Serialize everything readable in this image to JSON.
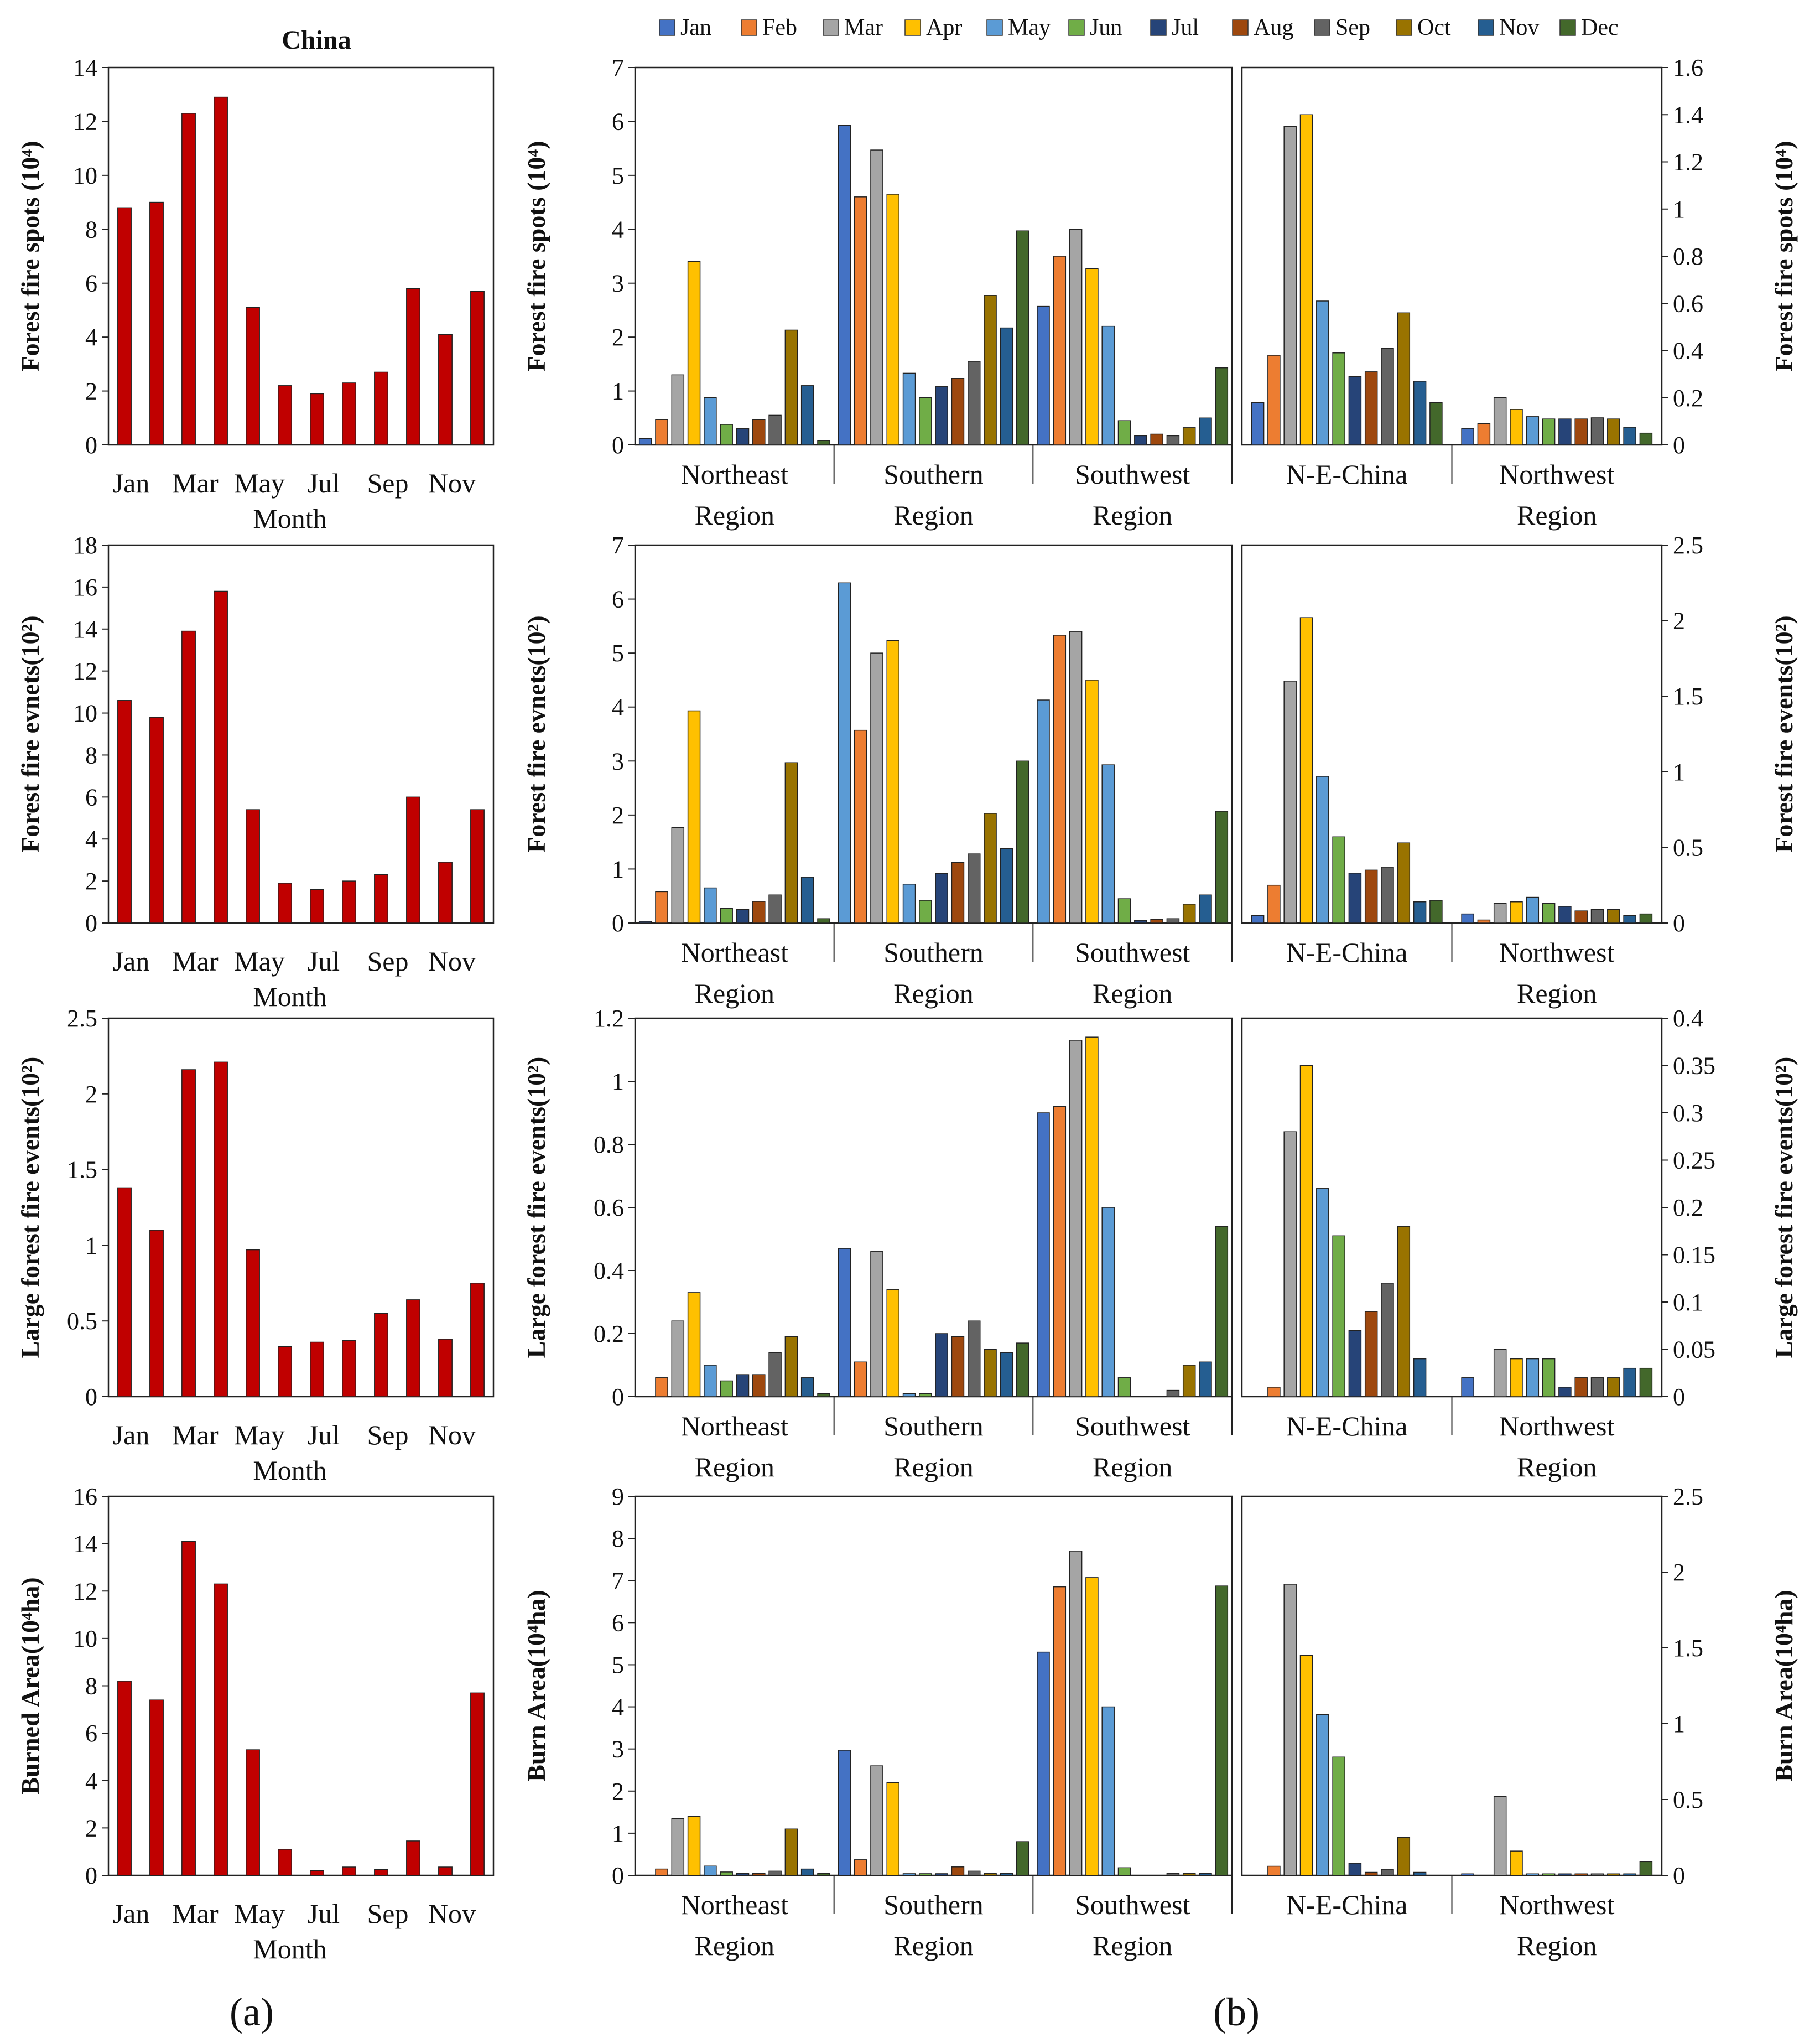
{
  "figure": {
    "panel_labels": [
      "(a)",
      "(b)"
    ],
    "china_title": "China",
    "month_tick_labels": [
      "Jan",
      "Mar",
      "May",
      "Jul",
      "Sep",
      "Nov"
    ],
    "month_axis_title": "Month",
    "region_groups_left": [
      [
        "Northeast",
        "Region"
      ],
      [
        "Southern",
        "Region"
      ],
      [
        "Southwest",
        "Region"
      ]
    ],
    "region_groups_right": [
      [
        "N-E-China"
      ],
      [
        "Northwest",
        "Region"
      ]
    ]
  },
  "colors": {
    "china_bar": "#C00000",
    "months": [
      "#4472C4",
      "#ED7D31",
      "#A5A5A5",
      "#FFC000",
      "#5B9BD5",
      "#70AD47",
      "#264478",
      "#9E480E",
      "#636363",
      "#997300",
      "#255E91",
      "#43682B"
    ]
  },
  "legend": {
    "items": [
      "Jan",
      "Feb",
      "Mar",
      "Apr",
      "May",
      "Jun",
      "Jul",
      "Aug",
      "Sep",
      "Oct",
      "Nov",
      "Dec"
    ]
  },
  "chart_data": [
    {
      "type": "bar",
      "id": "china-spots",
      "title": "China",
      "xlabel": "Month",
      "ylabel": "Forest fire spots (10⁴)",
      "ylim": [
        0,
        14
      ],
      "yticks": [
        0,
        2,
        4,
        6,
        8,
        10,
        12,
        14
      ],
      "categories": [
        "Jan",
        "Feb",
        "Mar",
        "Apr",
        "May",
        "Jun",
        "Jul",
        "Aug",
        "Sep",
        "Oct",
        "Nov",
        "Dec"
      ],
      "values": [
        8.8,
        9.0,
        12.3,
        12.9,
        5.1,
        2.2,
        1.9,
        2.3,
        2.7,
        5.8,
        4.1,
        5.7
      ]
    },
    {
      "type": "bar",
      "id": "china-events",
      "title": "",
      "xlabel": "Month",
      "ylabel": "Forest fire evnets(10²)",
      "ylim": [
        0,
        18
      ],
      "yticks": [
        0,
        2,
        4,
        6,
        8,
        10,
        12,
        14,
        16,
        18
      ],
      "categories": [
        "Jan",
        "Feb",
        "Mar",
        "Apr",
        "May",
        "Jun",
        "Jul",
        "Aug",
        "Sep",
        "Oct",
        "Nov",
        "Dec"
      ],
      "values": [
        10.6,
        9.8,
        13.9,
        15.8,
        5.4,
        1.9,
        1.6,
        2.0,
        2.3,
        6.0,
        2.9,
        5.4
      ]
    },
    {
      "type": "bar",
      "id": "china-large",
      "title": "",
      "xlabel": "Month",
      "ylabel": "Large forest  fire events(10²)",
      "ylim": [
        0,
        2.5
      ],
      "yticks": [
        0,
        0.5,
        1,
        1.5,
        2,
        2.5
      ],
      "categories": [
        "Jan",
        "Feb",
        "Mar",
        "Apr",
        "May",
        "Jun",
        "Jul",
        "Aug",
        "Sep",
        "Oct",
        "Nov",
        "Dec"
      ],
      "values": [
        1.38,
        1.1,
        2.16,
        2.21,
        0.97,
        0.33,
        0.36,
        0.37,
        0.55,
        0.64,
        0.38,
        0.75
      ]
    },
    {
      "type": "bar",
      "id": "china-burned",
      "title": "",
      "xlabel": "Month",
      "ylabel": "Burned Area(10⁴ha)",
      "ylim": [
        0,
        16
      ],
      "yticks": [
        0,
        2,
        4,
        6,
        8,
        10,
        12,
        14,
        16
      ],
      "categories": [
        "Jan",
        "Feb",
        "Mar",
        "Apr",
        "May",
        "Jun",
        "Jul",
        "Aug",
        "Sep",
        "Oct",
        "Nov",
        "Dec"
      ],
      "values": [
        8.2,
        7.4,
        14.1,
        12.3,
        5.3,
        1.1,
        0.2,
        0.35,
        0.25,
        1.45,
        0.35,
        7.7
      ]
    },
    {
      "type": "bar",
      "id": "regions-spots",
      "ylabel_left": "Forest fire spots (10⁴)",
      "ylabel_right": "Forest fire spots (10⁴)",
      "ylim_left": [
        0,
        7
      ],
      "yticks_left": [
        0,
        1,
        2,
        3,
        4,
        5,
        6,
        7
      ],
      "ylim_right": [
        0,
        1.6
      ],
      "yticks_right": [
        0,
        0.2,
        0.4,
        0.6,
        0.8,
        1,
        1.2,
        1.4,
        1.6
      ],
      "groups_left": [
        {
          "name": "Northeast Region",
          "values": [
            0.12,
            0.47,
            1.3,
            3.4,
            0.88,
            0.38,
            0.3,
            0.47,
            0.55,
            2.13,
            1.1,
            0.08
          ]
        },
        {
          "name": "Southern Region",
          "values": [
            5.93,
            4.6,
            5.47,
            4.65,
            1.33,
            0.88,
            1.08,
            1.23,
            1.55,
            2.77,
            2.17,
            3.97
          ]
        },
        {
          "name": "Southwest Region",
          "values": [
            2.57,
            3.5,
            4.0,
            3.27,
            2.2,
            0.45,
            0.17,
            0.2,
            0.17,
            0.32,
            0.5,
            1.43
          ]
        }
      ],
      "groups_right": [
        {
          "name": "N-E-China",
          "values": [
            0.18,
            0.38,
            1.35,
            1.4,
            0.61,
            0.39,
            0.29,
            0.31,
            0.41,
            0.56,
            0.27,
            0.18
          ]
        },
        {
          "name": "Northwest Region",
          "values": [
            0.07,
            0.09,
            0.2,
            0.15,
            0.12,
            0.11,
            0.11,
            0.11,
            0.115,
            0.11,
            0.075,
            0.05
          ]
        }
      ]
    },
    {
      "type": "bar",
      "id": "regions-events",
      "ylabel_left": "Forest fire evnets(10²)",
      "ylabel_right": "Forest  fire events(10²)",
      "ylim_left": [
        0,
        7
      ],
      "yticks_left": [
        0,
        1,
        2,
        3,
        4,
        5,
        6,
        7
      ],
      "ylim_right": [
        0,
        2.5
      ],
      "yticks_right": [
        0,
        0.5,
        1,
        1.5,
        2,
        2.5
      ],
      "groups_left": [
        {
          "name": "Northeast Region",
          "values": [
            0.03,
            0.58,
            1.77,
            3.93,
            0.65,
            0.27,
            0.25,
            0.4,
            0.52,
            2.97,
            0.85,
            0.08
          ]
        },
        {
          "name": "Southern Region",
          "values": [
            0,
            3.57,
            5.0,
            5.23,
            0.72,
            0.42,
            0.92,
            1.12,
            1.28,
            2.03,
            1.38,
            3.0
          ]
        },
        {
          "name": "Southwest Region",
          "values": [
            0,
            5.33,
            5.4,
            4.5,
            2.93,
            0.45,
            0.05,
            0.07,
            0.08,
            0.35,
            0.52,
            2.07
          ]
        }
      ],
      "groups_left_first_bar_override": [
        {
          "group": 1,
          "value": 6.3,
          "color_index": 4
        },
        {
          "group": 2,
          "value": 4.13,
          "color_index": 4
        }
      ],
      "groups_right": [
        {
          "name": "N-E-China",
          "values": [
            0.05,
            0.25,
            1.6,
            2.02,
            0.97,
            0.57,
            0.33,
            0.35,
            0.37,
            0.53,
            0.14,
            0.15
          ]
        },
        {
          "name": "Northwest Region",
          "values": [
            0.06,
            0.02,
            0.13,
            0.14,
            0.17,
            0.13,
            0.11,
            0.08,
            0.09,
            0.09,
            0.05,
            0.06
          ]
        }
      ]
    },
    {
      "type": "bar",
      "id": "regions-large",
      "ylabel_left": "Large forest  fire events(10²)",
      "ylabel_right": "Large forest  fire events(10²)",
      "ylim_left": [
        0,
        1.2
      ],
      "yticks_left": [
        0,
        0.2,
        0.4,
        0.6,
        0.8,
        1,
        1.2
      ],
      "ylim_right": [
        0,
        0.4
      ],
      "yticks_right": [
        0,
        0.05,
        0.1,
        0.15,
        0.2,
        0.25,
        0.3,
        0.35,
        0.4
      ],
      "groups_left": [
        {
          "name": "Northeast Region",
          "values": [
            0,
            0.06,
            0.24,
            0.33,
            0.1,
            0.05,
            0.07,
            0.07,
            0.14,
            0.19,
            0.06,
            0.01
          ]
        },
        {
          "name": "Southern Region",
          "values": [
            0.47,
            0.11,
            0.46,
            0.34,
            0.01,
            0.01,
            0.2,
            0.19,
            0.24,
            0.15,
            0.14,
            0.17
          ]
        },
        {
          "name": "Southwest Region",
          "values": [
            0.9,
            0.92,
            1.13,
            1.14,
            0.6,
            0.06,
            0,
            0,
            0.02,
            0.1,
            0.11,
            0.54
          ]
        }
      ],
      "groups_right": [
        {
          "name": "N-E-China",
          "values": [
            0,
            0.01,
            0.28,
            0.35,
            0.22,
            0.17,
            0.07,
            0.09,
            0.12,
            0.18,
            0.04,
            0
          ]
        },
        {
          "name": "Northwest Region",
          "values": [
            0.02,
            0,
            0.05,
            0.04,
            0.04,
            0.04,
            0.01,
            0.02,
            0.02,
            0.02,
            0.03,
            0.03
          ]
        }
      ]
    },
    {
      "type": "bar",
      "id": "regions-burned",
      "ylabel_left": "Burn Area(10⁴ha)",
      "ylabel_right": "Burn Area(10⁴ha)",
      "ylim_left": [
        0,
        9
      ],
      "yticks_left": [
        0,
        1,
        2,
        3,
        4,
        5,
        6,
        7,
        8,
        9
      ],
      "ylim_right": [
        0,
        2.5
      ],
      "yticks_right": [
        0,
        0.5,
        1,
        1.5,
        2,
        2.5
      ],
      "groups_left": [
        {
          "name": "Northeast Region",
          "values": [
            0,
            0.15,
            1.35,
            1.4,
            0.22,
            0.08,
            0.05,
            0.05,
            0.1,
            1.1,
            0.15,
            0.05
          ]
        },
        {
          "name": "Southern Region",
          "values": [
            2.97,
            0.37,
            2.6,
            2.2,
            0.04,
            0.04,
            0.04,
            0.2,
            0.1,
            0.05,
            0.05,
            0.8
          ]
        },
        {
          "name": "Southwest Region",
          "values": [
            5.3,
            6.85,
            7.7,
            7.07,
            4.0,
            0.18,
            0,
            0,
            0.05,
            0.05,
            0.05,
            6.87
          ]
        }
      ],
      "groups_right": [
        {
          "name": "N-E-China",
          "values": [
            0,
            0.06,
            1.92,
            1.45,
            1.06,
            0.78,
            0.08,
            0.02,
            0.04,
            0.25,
            0.02,
            0
          ]
        },
        {
          "name": "Northwest Region",
          "values": [
            0.01,
            0,
            0.52,
            0.16,
            0.01,
            0.01,
            0.01,
            0.01,
            0.01,
            0.01,
            0.01,
            0.09
          ]
        }
      ]
    }
  ]
}
